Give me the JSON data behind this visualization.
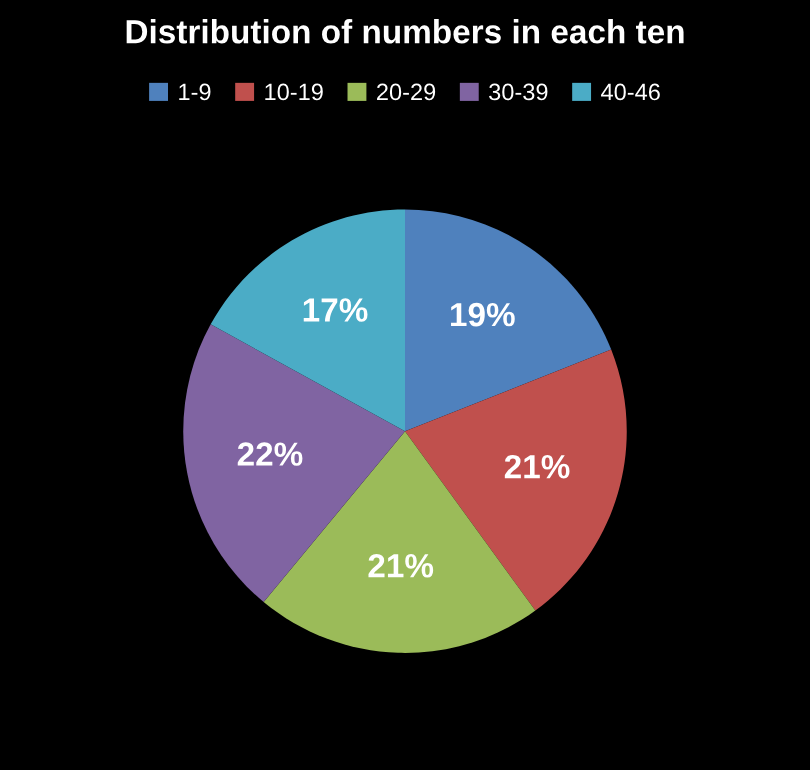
{
  "chart_data": {
    "type": "pie",
    "title": "Distribution of numbers in each ten",
    "categories": [
      "1-9",
      "10-19",
      "20-29",
      "30-39",
      "40-46"
    ],
    "values": [
      19,
      21,
      21,
      22,
      17
    ],
    "value_labels": [
      "19%",
      "21%",
      "21%",
      "22%",
      "17%"
    ],
    "colors": [
      "#4f81bd",
      "#c0504d",
      "#9bbb59",
      "#8064a2",
      "#4bacc6"
    ],
    "legend": "top"
  }
}
